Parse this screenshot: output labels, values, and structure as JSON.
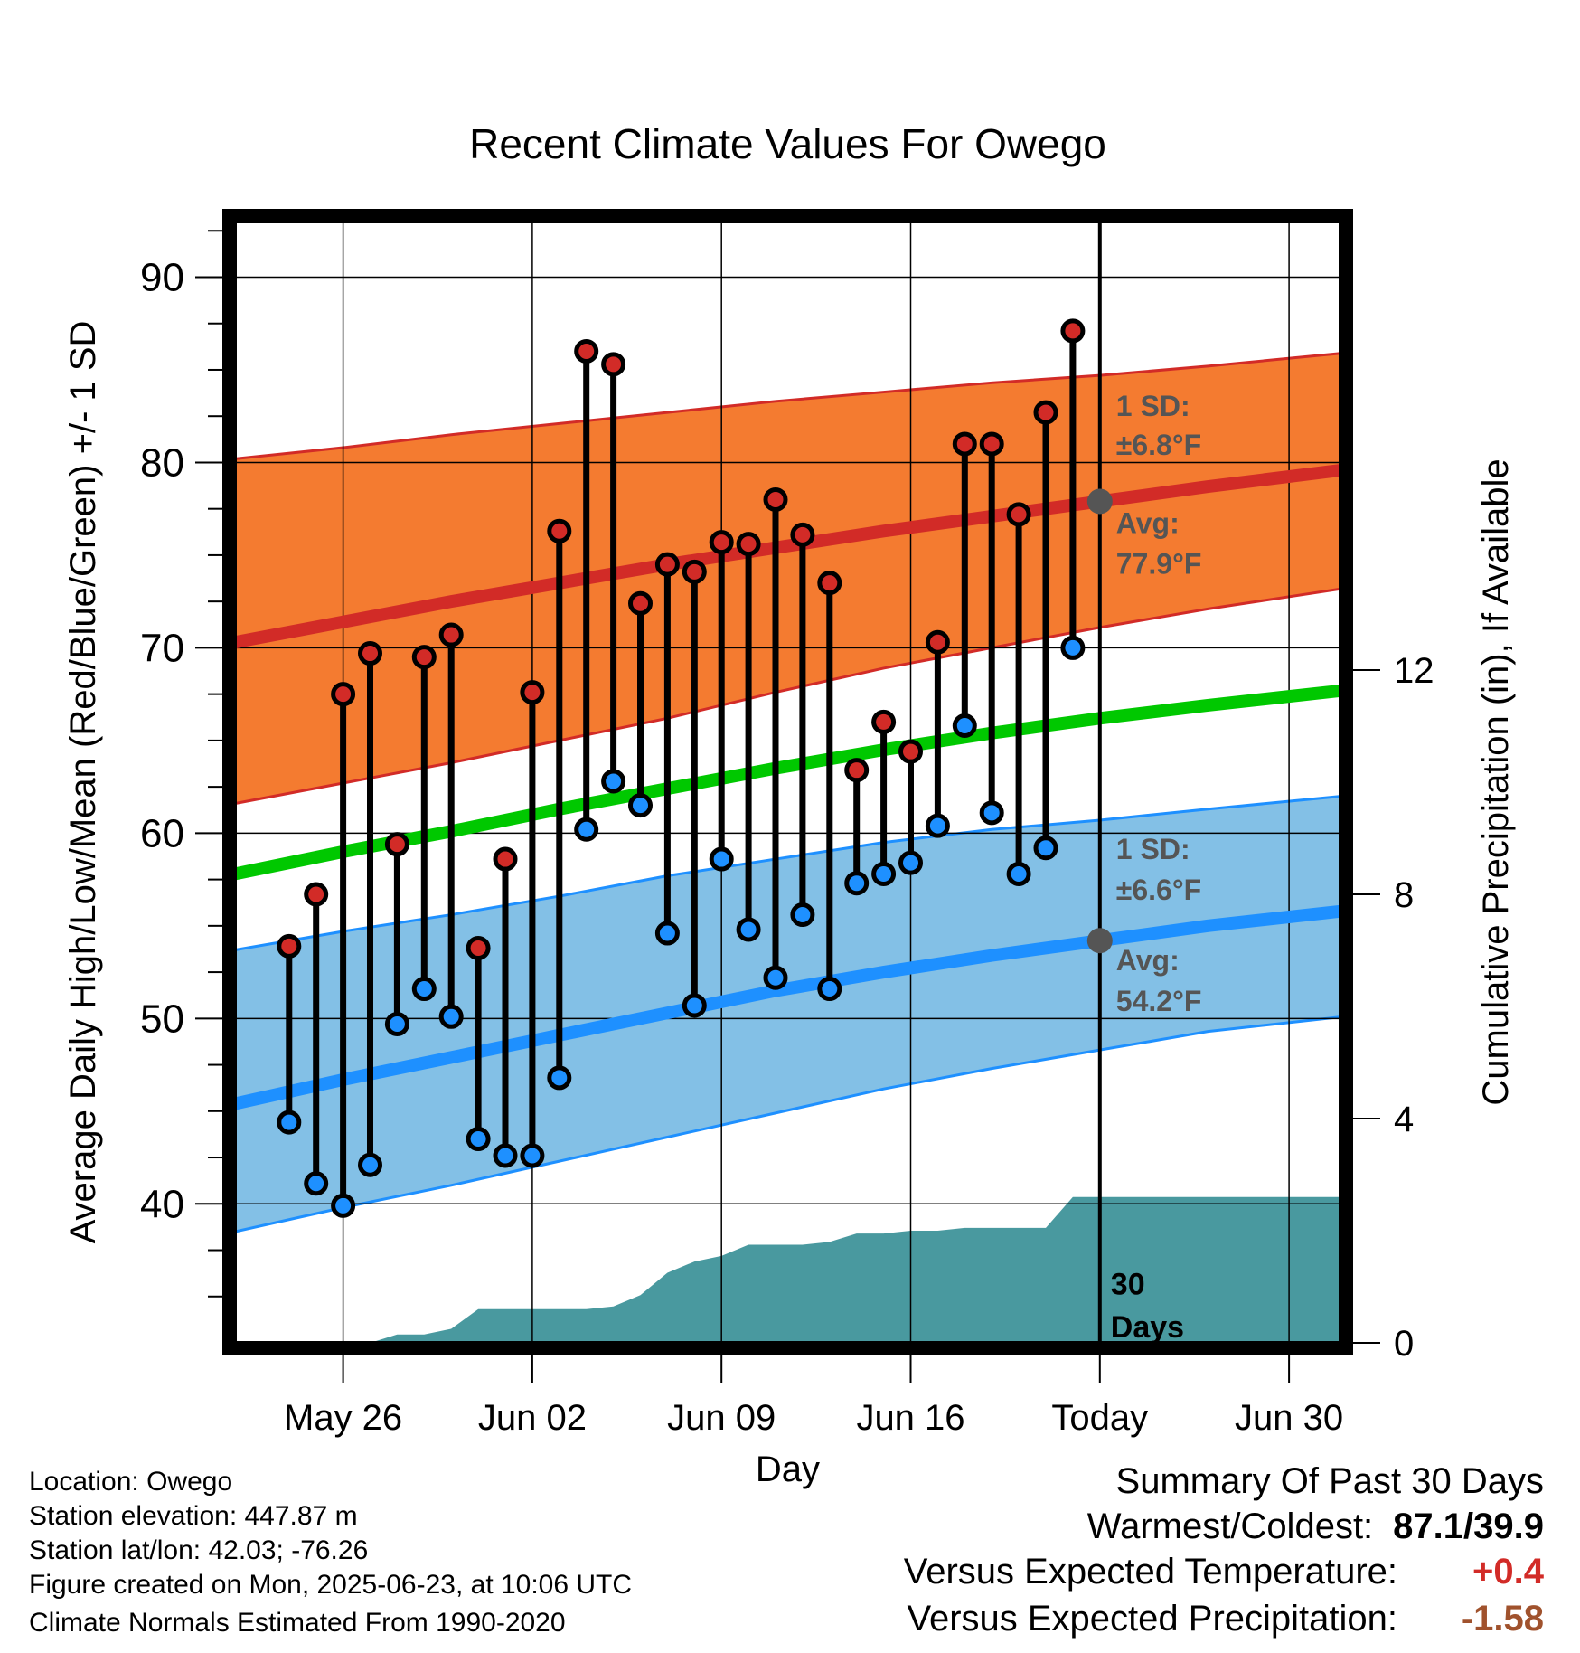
{
  "chart_data": {
    "type": "line",
    "title": "Recent Climate Values For Owego",
    "xlabel": "Day",
    "ylabel": "Average Daily High/Low/Mean (Red/Blue/Green) +/- 1 SD",
    "y2label": "Cumulative Precipitation (in), If Available",
    "xlim": [
      "2025-05-22",
      "2025-07-02"
    ],
    "ylim": [
      32.5,
      93
    ],
    "y2lim": [
      0,
      20
    ],
    "x_ticks": [
      {
        "date": "2025-05-26",
        "label": "May 26"
      },
      {
        "date": "2025-06-02",
        "label": "Jun 02"
      },
      {
        "date": "2025-06-09",
        "label": "Jun 09"
      },
      {
        "date": "2025-06-16",
        "label": "Jun 16"
      },
      {
        "date": "2025-06-23",
        "label": "Today"
      },
      {
        "date": "2025-06-30",
        "label": "Jun 30"
      }
    ],
    "y_ticks": [
      40,
      50,
      60,
      70,
      80,
      90
    ],
    "y2_ticks": [
      0,
      4,
      8,
      12
    ],
    "grid": true,
    "colors": {
      "high_band": "#f47b30",
      "high_line": "#d22b27",
      "low_band": "#83c0e6",
      "low_line": "#1e90ff",
      "mean_line": "#00c800",
      "precip": "#49999f",
      "high_point": "#d22b27",
      "low_point": "#1e90ff",
      "today_marker": "#555555"
    },
    "days": [
      "2025-05-24",
      "2025-05-25",
      "2025-05-26",
      "2025-05-27",
      "2025-05-28",
      "2025-05-29",
      "2025-05-30",
      "2025-05-31",
      "2025-06-01",
      "2025-06-02",
      "2025-06-03",
      "2025-06-04",
      "2025-06-05",
      "2025-06-06",
      "2025-06-07",
      "2025-06-08",
      "2025-06-09",
      "2025-06-10",
      "2025-06-11",
      "2025-06-12",
      "2025-06-13",
      "2025-06-14",
      "2025-06-15",
      "2025-06-16",
      "2025-06-17",
      "2025-06-18",
      "2025-06-19",
      "2025-06-20",
      "2025-06-21",
      "2025-06-22"
    ],
    "series": [
      {
        "name": "High",
        "values": [
          53.9,
          56.7,
          67.5,
          69.7,
          59.4,
          69.5,
          70.7,
          53.8,
          58.6,
          67.6,
          76.3,
          86.0,
          85.3,
          72.4,
          74.5,
          74.1,
          75.7,
          75.6,
          78.0,
          76.1,
          73.5,
          63.4,
          66.0,
          64.4,
          70.3,
          81.0,
          81.0,
          77.2,
          82.7,
          87.1
        ]
      },
      {
        "name": "Low",
        "values": [
          44.4,
          41.1,
          39.9,
          42.1,
          49.7,
          51.6,
          50.1,
          43.5,
          42.6,
          42.6,
          46.8,
          60.2,
          62.8,
          61.5,
          54.6,
          50.7,
          58.6,
          54.8,
          52.2,
          55.6,
          51.6,
          57.3,
          57.8,
          58.4,
          60.4,
          65.8,
          61.1,
          57.8,
          59.2,
          70.0
        ]
      }
    ],
    "normals": {
      "x": [
        "2025-05-22",
        "2025-05-26",
        "2025-05-30",
        "2025-06-03",
        "2025-06-07",
        "2025-06-11",
        "2025-06-15",
        "2025-06-19",
        "2025-06-23",
        "2025-06-27",
        "2025-07-02"
      ],
      "high_avg": [
        70.3,
        71.4,
        72.5,
        73.5,
        74.5,
        75.4,
        76.3,
        77.1,
        77.9,
        78.7,
        79.6
      ],
      "high_upper": [
        80.2,
        80.8,
        81.5,
        82.1,
        82.7,
        83.3,
        83.8,
        84.3,
        84.7,
        85.2,
        85.9
      ],
      "high_lower": [
        61.6,
        62.7,
        63.8,
        65.0,
        66.2,
        67.6,
        68.9,
        70.0,
        71.1,
        72.1,
        73.2
      ],
      "mean_avg": [
        57.8,
        59.0,
        60.1,
        61.3,
        62.4,
        63.5,
        64.5,
        65.4,
        66.2,
        66.9,
        67.7
      ],
      "low_avg": [
        45.4,
        46.7,
        47.9,
        49.1,
        50.3,
        51.5,
        52.5,
        53.4,
        54.2,
        55.0,
        55.8
      ],
      "low_upper": [
        53.7,
        54.7,
        55.6,
        56.6,
        57.7,
        58.6,
        59.5,
        60.2,
        60.7,
        61.3,
        62.0
      ],
      "low_lower": [
        38.5,
        39.8,
        41.0,
        42.3,
        43.6,
        44.9,
        46.2,
        47.3,
        48.3,
        49.3,
        50.1
      ]
    },
    "precip": {
      "x": [
        "2025-05-23",
        "2025-05-24",
        "2025-05-25",
        "2025-05-26",
        "2025-05-27",
        "2025-05-28",
        "2025-05-29",
        "2025-05-30",
        "2025-05-31",
        "2025-06-01",
        "2025-06-02",
        "2025-06-03",
        "2025-06-04",
        "2025-06-05",
        "2025-06-06",
        "2025-06-07",
        "2025-06-08",
        "2025-06-09",
        "2025-06-10",
        "2025-06-11",
        "2025-06-12",
        "2025-06-13",
        "2025-06-14",
        "2025-06-15",
        "2025-06-16",
        "2025-06-17",
        "2025-06-18",
        "2025-06-19",
        "2025-06-20",
        "2025-06-21",
        "2025-06-22",
        "2025-06-23",
        "2025-07-02"
      ],
      "values": [
        0,
        0,
        0,
        0,
        0,
        0.15,
        0.15,
        0.25,
        0.6,
        0.6,
        0.6,
        0.6,
        0.6,
        0.65,
        0.85,
        1.25,
        1.45,
        1.55,
        1.75,
        1.75,
        1.75,
        1.8,
        1.95,
        1.95,
        2.0,
        2.0,
        2.05,
        2.05,
        2.05,
        2.05,
        2.6,
        2.6,
        2.6
      ]
    },
    "annotations": {
      "high_sd": "1 SD:",
      "high_sd_value": "±6.8°F",
      "high_avg_label": "Avg:",
      "high_avg_value": "77.9°F",
      "low_sd": "1 SD:",
      "low_sd_value": "±6.6°F",
      "low_avg_label": "Avg:",
      "low_avg_value": "54.2°F",
      "period_num": "30",
      "period_unit": "Days",
      "today_high_avg": 77.9,
      "today_low_avg": 54.2
    }
  },
  "footer": {
    "location": "Location: Owego",
    "elevation": "Station elevation: 447.87 m",
    "latlon": "Station lat/lon: 42.03; -76.26",
    "created": "Figure created on Mon, 2025-06-23, at 10:06 UTC",
    "normals": "Climate Normals Estimated From 1990-2020"
  },
  "summary": {
    "title": "Summary Of Past 30 Days",
    "warmest_label": "Warmest/Coldest:",
    "warmest_value": "87.1/39.9",
    "temp_label": "Versus Expected Temperature:",
    "temp_value": "+0.4",
    "temp_color": "#d22b27",
    "precip_label": "Versus Expected Precipitation:",
    "precip_value": "-1.58",
    "precip_color": "#a0522d"
  }
}
